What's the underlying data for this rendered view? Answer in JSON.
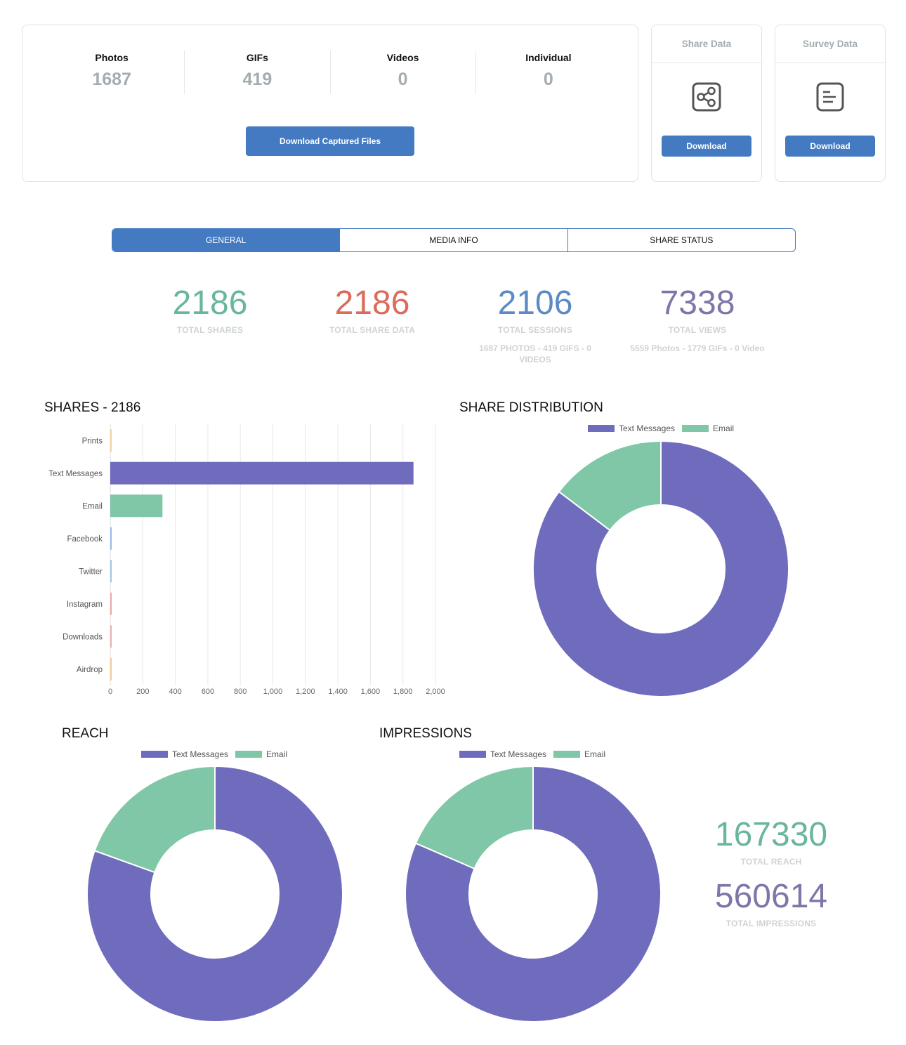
{
  "captured": {
    "stats": [
      {
        "label": "Photos",
        "value": "1687"
      },
      {
        "label": "GIFs",
        "value": "419"
      },
      {
        "label": "Videos",
        "value": "0"
      },
      {
        "label": "Individual",
        "value": "0"
      }
    ],
    "download_label": "Download Captured Files"
  },
  "share_data": {
    "title": "Share Data",
    "icon": "share-icon",
    "button_label": "Download"
  },
  "survey_data": {
    "title": "Survey Data",
    "icon": "document-icon",
    "button_label": "Download"
  },
  "tabs": [
    {
      "label": "GENERAL",
      "active": true
    },
    {
      "label": "MEDIA INFO",
      "active": false
    },
    {
      "label": "SHARE STATUS",
      "active": false
    }
  ],
  "kpis": [
    {
      "value": "2186",
      "label": "TOTAL SHARES",
      "sub": "",
      "color": "#6ab69b"
    },
    {
      "value": "2186",
      "label": "TOTAL SHARE DATA",
      "sub": "",
      "color": "#dc6b5c"
    },
    {
      "value": "2106",
      "label": "TOTAL SESSIONS",
      "sub": "1687 PHOTOS - 419 GIFS - 0 VIDEOS",
      "color": "#5b8ac4"
    },
    {
      "value": "7338",
      "label": "TOTAL VIEWS",
      "sub": "5559 Photos - 1779 GIFs - 0 Video",
      "color": "#7e76a8"
    }
  ],
  "colors": {
    "text_messages": "#6f6bbd",
    "email": "#7fc7a6",
    "accent": "#437ac1"
  },
  "totals": {
    "reach_value": "167330",
    "reach_label": "TOTAL REACH",
    "reach_color": "#6ab69b",
    "impressions_value": "560614",
    "impressions_label": "TOTAL IMPRESSIONS",
    "impressions_color": "#7e76a8"
  },
  "chart_data": [
    {
      "type": "bar",
      "orientation": "horizontal",
      "title": "SHARES - 2186",
      "categories": [
        "Prints",
        "Text Messages",
        "Email",
        "Facebook",
        "Twitter",
        "Instagram",
        "Downloads",
        "Airdrop"
      ],
      "values": [
        0,
        1865,
        321,
        0,
        0,
        0,
        0,
        0
      ],
      "bar_colors": [
        "#f6d19a",
        "#6f6bbd",
        "#7fc7a6",
        "#9fb7ee",
        "#9fc6ee",
        "#eea7a7",
        "#eeb0b0",
        "#f6c99a"
      ],
      "xlim": [
        0,
        2000
      ],
      "xticks": [
        "0",
        "200",
        "400",
        "600",
        "800",
        "1,000",
        "1,200",
        "1,400",
        "1,600",
        "1,800",
        "2,000"
      ],
      "grid": true
    },
    {
      "type": "pie",
      "variant": "doughnut",
      "title": "SHARE DISTRIBUTION",
      "legend": [
        "Text Messages",
        "Email"
      ],
      "legend_position": "top",
      "values": [
        1865,
        321
      ]
    },
    {
      "type": "pie",
      "variant": "doughnut",
      "title": "REACH",
      "legend": [
        "Text Messages",
        "Email"
      ],
      "legend_position": "top",
      "values": [
        80.5,
        19.5
      ]
    },
    {
      "type": "pie",
      "variant": "doughnut",
      "title": "IMPRESSIONS",
      "legend": [
        "Text Messages",
        "Email"
      ],
      "legend_position": "top",
      "values": [
        81.5,
        18.5
      ]
    }
  ]
}
